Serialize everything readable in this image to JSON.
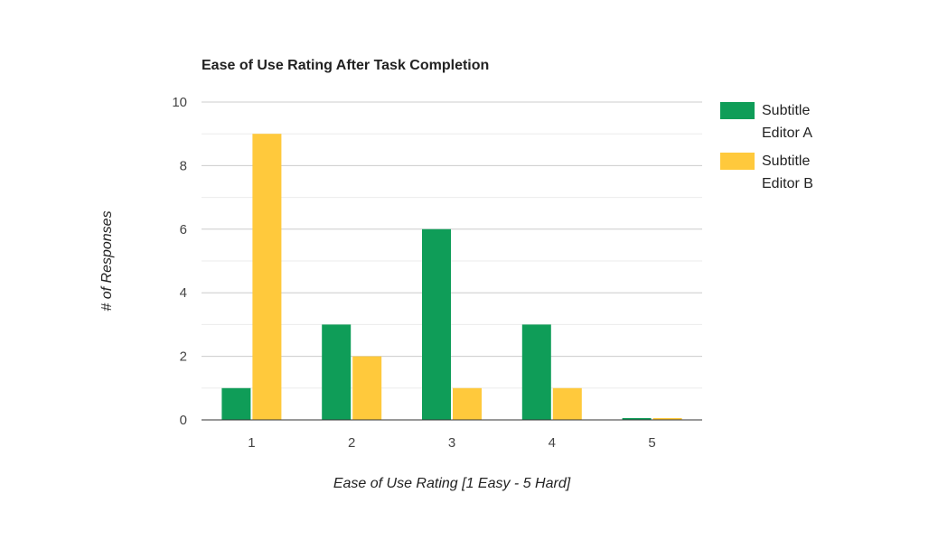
{
  "chart_data": {
    "type": "bar",
    "title": "Ease of Use Rating After Task Completion",
    "xlabel": "Ease of Use Rating [1 Easy - 5 Hard]",
    "ylabel": "# of Responses",
    "categories": [
      "1",
      "2",
      "3",
      "4",
      "5"
    ],
    "series": [
      {
        "name": "Subtitle Editor A",
        "legend_lines": [
          "Subtitle",
          "Editor A"
        ],
        "color": "#0f9d58",
        "values": [
          1,
          3,
          6,
          3,
          0
        ]
      },
      {
        "name": "Subtitle Editor B",
        "legend_lines": [
          "Subtitle",
          "Editor B"
        ],
        "color": "#ffc93c",
        "values": [
          9,
          2,
          1,
          1,
          0
        ]
      }
    ],
    "ylim": [
      0,
      10
    ],
    "yticks": [
      0,
      2,
      4,
      6,
      8,
      10
    ],
    "grid": true,
    "legend_position": "right"
  }
}
